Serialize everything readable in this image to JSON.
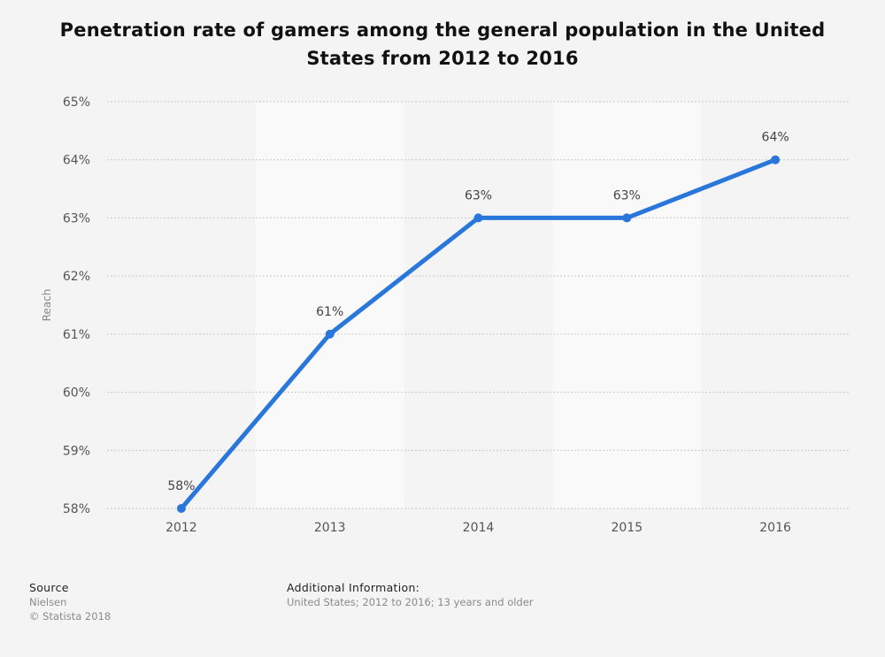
{
  "title": "Penetration rate of gamers among the general population in the United States from 2012 to 2016",
  "chart_data": {
    "type": "line",
    "title": "Penetration rate of gamers among the general population in the United States from 2012 to 2016",
    "xlabel": "",
    "ylabel": "Reach",
    "categories": [
      "2012",
      "2013",
      "2014",
      "2015",
      "2016"
    ],
    "series": [
      {
        "values": [
          58,
          61,
          63,
          63,
          64
        ],
        "labels": [
          "58%",
          "61%",
          "63%",
          "63%",
          "64%"
        ],
        "color": "#2a77dc"
      }
    ],
    "ylim": [
      58,
      65
    ],
    "yticks": [
      "58%",
      "59%",
      "60%",
      "61%",
      "62%",
      "63%",
      "64%",
      "65%"
    ],
    "grid": true
  },
  "footer": {
    "source_heading": "Source",
    "source_name": "Nielsen",
    "copyright": "© Statista 2018",
    "info_heading": "Additional Information:",
    "info_text": "United States; 2012 to 2016; 13 years and older"
  },
  "colors": {
    "line": "#2a77dc",
    "grid": "#c8c8c8",
    "band": "#f9f9f9",
    "background": "#f4f4f4"
  }
}
